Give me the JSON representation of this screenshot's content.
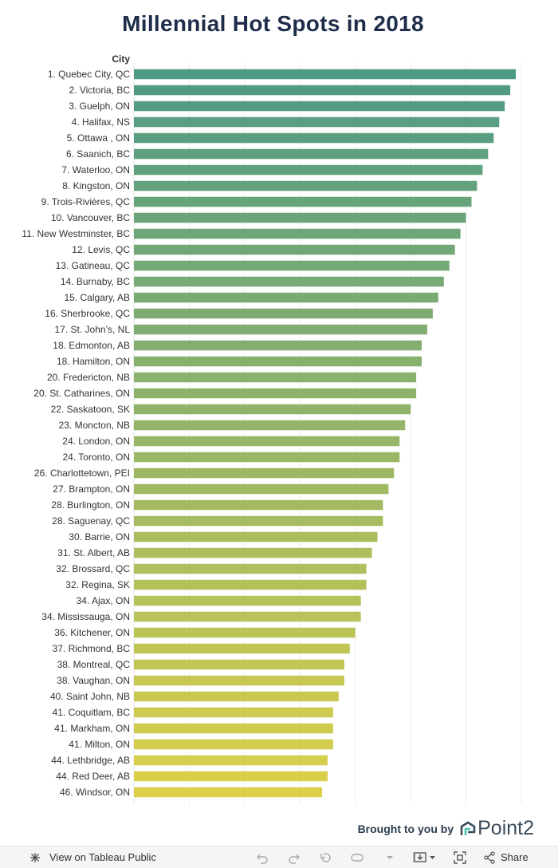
{
  "title": "Millennial Hot Spots in 2018",
  "chart_data": {
    "type": "bar",
    "orientation": "horizontal",
    "title": "Millennial Hot Spots in 2018",
    "ylabel": "City",
    "xlabel": "",
    "xlim": [
      0,
      70
    ],
    "grid": true,
    "categories": [
      "1. Quebec City, QC",
      "2. Victoria, BC",
      "3. Guelph, ON",
      "4. Halifax, NS",
      "5. Ottawa , ON",
      "6. Saanich, BC",
      "7. Waterloo, ON",
      "8. Kingston, ON",
      "9. Trois-Rivières, QC",
      "10. Vancouver, BC",
      "11. New Westminster, BC",
      "12. Levis, QC",
      "13. Gatineau, QC",
      "14. Burnaby, BC",
      "15. Calgary, AB",
      "16. Sherbrooke, QC",
      "17. St. John’s, NL",
      "18. Edmonton, AB",
      "18. Hamilton, ON",
      "20. Fredericton, NB",
      "20. St. Catharines, ON",
      "22. Saskatoon, SK",
      "23. Moncton, NB",
      "24. London, ON",
      "24. Toronto, ON",
      "26. Charlottetown, PEI",
      "27. Brampton, ON",
      "28. Burlington, ON",
      "28. Saguenay, QC",
      "30. Barrie, ON",
      "31. St. Albert, AB",
      "32. Brossard, QC",
      "32. Regina, SK",
      "34. Ajax, ON",
      "34. Mississauga, ON",
      "36. Kitchener, ON",
      "37. Richmond, BC",
      "38. Montreal, QC",
      "38. Vaughan, ON",
      "40. Saint John, NB",
      "41. Coquitlam, BC",
      "41. Markham, ON",
      "41. Milton, ON",
      "44. Lethbridge, AB",
      "44. Red Deer, AB",
      "46. Windsor, ON"
    ],
    "values": [
      69,
      68,
      67,
      66,
      65,
      64,
      63,
      62,
      61,
      60,
      59,
      58,
      57,
      56,
      55,
      54,
      53,
      52,
      52,
      51,
      51,
      50,
      49,
      48,
      48,
      47,
      46,
      45,
      45,
      44,
      43,
      42,
      42,
      41,
      41,
      40,
      39,
      38,
      38,
      37,
      36,
      36,
      36,
      35,
      35,
      34
    ],
    "colors": {
      "top": "#4e9a86",
      "bottom": "#dcd04a"
    }
  },
  "footer": {
    "credit_text": "Brought to you by",
    "brand": "Point2"
  },
  "toolbar": {
    "view_label": "View on Tableau Public",
    "share_label": "Share"
  }
}
